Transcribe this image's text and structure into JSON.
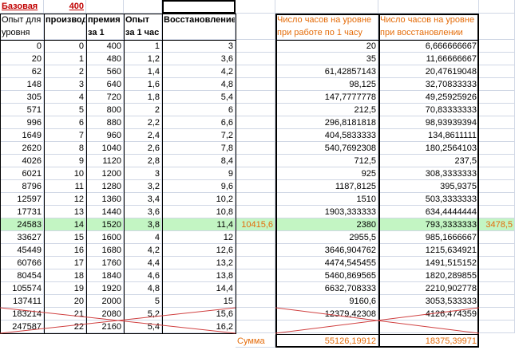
{
  "top": {
    "label": "Базовая",
    "value": "400"
  },
  "headers": [
    "Опыт для уровня",
    "производ",
    "премия за 1 час",
    "Опыт за 1 час",
    "Восстановление",
    "Число часов на уровне при работе по 1 часу",
    "Число часов на уровне при восстановлении"
  ],
  "rows": [
    [
      "0",
      "0",
      "400",
      "1",
      "3",
      null,
      "20",
      "6,666666667",
      null
    ],
    [
      "20",
      "1",
      "480",
      "1,2",
      "3,6",
      null,
      "35",
      "11,66666667",
      null
    ],
    [
      "62",
      "2",
      "560",
      "1,4",
      "4,2",
      null,
      "61,42857143",
      "20,47619048",
      null
    ],
    [
      "148",
      "3",
      "640",
      "1,6",
      "4,8",
      null,
      "98,125",
      "32,70833333",
      null
    ],
    [
      "305",
      "4",
      "720",
      "1,8",
      "5,4",
      null,
      "147,7777778",
      "49,25925926",
      null
    ],
    [
      "571",
      "5",
      "800",
      "2",
      "6",
      null,
      "212,5",
      "70,83333333",
      null
    ],
    [
      "996",
      "6",
      "880",
      "2,2",
      "6,6",
      null,
      "296,8181818",
      "98,93939394",
      null
    ],
    [
      "1649",
      "7",
      "960",
      "2,4",
      "7,2",
      null,
      "404,5833333",
      "134,8611111",
      null
    ],
    [
      "2620",
      "8",
      "1040",
      "2,6",
      "7,8",
      null,
      "540,7692308",
      "180,2564103",
      null
    ],
    [
      "4026",
      "9",
      "1120",
      "2,8",
      "8,4",
      null,
      "712,5",
      "237,5",
      null
    ],
    [
      "6021",
      "10",
      "1200",
      "3",
      "9",
      null,
      "925",
      "308,3333333",
      null
    ],
    [
      "8796",
      "11",
      "1280",
      "3,2",
      "9,6",
      null,
      "1187,8125",
      "395,9375",
      null
    ],
    [
      "12597",
      "12",
      "1360",
      "3,4",
      "10,2",
      null,
      "1510",
      "503,3333333",
      null
    ],
    [
      "17731",
      "13",
      "1440",
      "3,6",
      "10,8",
      null,
      "1903,333333",
      "634,4444444",
      null
    ],
    [
      "24583",
      "14",
      "1520",
      "3,8",
      "11,4",
      "10415,6",
      "2380",
      "793,3333333",
      "3478,5"
    ],
    [
      "33627",
      "15",
      "1600",
      "4",
      "12",
      null,
      "2955,5",
      "985,1666667",
      null
    ],
    [
      "45449",
      "16",
      "1680",
      "4,2",
      "12,6",
      null,
      "3646,904762",
      "1215,634921",
      null
    ],
    [
      "60766",
      "17",
      "1760",
      "4,4",
      "13,2",
      null,
      "4474,545455",
      "1491,515152",
      null
    ],
    [
      "80454",
      "18",
      "1840",
      "4,6",
      "13,8",
      null,
      "5460,869565",
      "1820,289855",
      null
    ],
    [
      "105574",
      "19",
      "1920",
      "4,8",
      "14,4",
      null,
      "6632,708333",
      "2210,902778",
      null
    ],
    [
      "137411",
      "20",
      "2000",
      "5",
      "15",
      null,
      "9160,6",
      "3053,533333",
      null
    ],
    [
      "183214",
      "21",
      "2080",
      "5,2",
      "15,6",
      null,
      "12379,42308",
      "4126,474359",
      null
    ],
    [
      "247587",
      "22",
      "2160",
      "5,4",
      "16,2",
      null,
      null,
      null,
      null
    ]
  ],
  "sum": {
    "label": "Сумма",
    "work": "55126,19912",
    "restore": "18375,39971"
  }
}
